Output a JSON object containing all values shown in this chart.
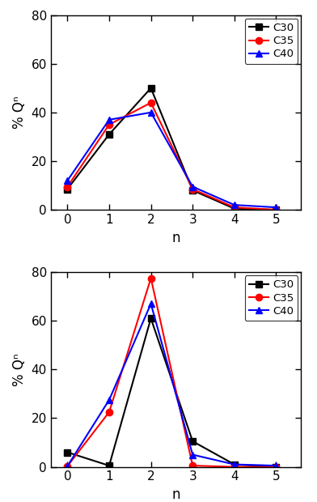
{
  "top_panel": {
    "ylabel": "% Qⁿ",
    "xlabel": "n",
    "series": {
      "C30": {
        "color": "black",
        "marker": "s",
        "x": [
          0,
          1,
          2,
          3,
          4,
          5
        ],
        "y": [
          8.5,
          31,
          50,
          8,
          0.5,
          0
        ]
      },
      "C35": {
        "color": "red",
        "marker": "o",
        "x": [
          0,
          1,
          2,
          3,
          4,
          5
        ],
        "y": [
          9.5,
          35,
          44,
          8.5,
          1.0,
          0
        ]
      },
      "C40": {
        "color": "blue",
        "marker": "^",
        "x": [
          0,
          1,
          2,
          3,
          4,
          5
        ],
        "y": [
          12,
          37,
          40,
          9.5,
          2,
          1
        ]
      }
    },
    "ylim": [
      0,
      80
    ],
    "xlim": [
      -0.4,
      5.6
    ],
    "yticks": [
      0,
      20,
      40,
      60,
      80
    ],
    "xticks": [
      0,
      1,
      2,
      3,
      4,
      5
    ]
  },
  "bottom_panel": {
    "ylabel": "% Qⁿ",
    "xlabel": "n",
    "series": {
      "C30": {
        "color": "black",
        "marker": "s",
        "x": [
          0,
          1,
          2,
          3,
          4,
          5
        ],
        "y": [
          6,
          0.5,
          61,
          10.5,
          1,
          0
        ]
      },
      "C35": {
        "color": "red",
        "marker": "o",
        "x": [
          0,
          1,
          2,
          3,
          4,
          5
        ],
        "y": [
          0.3,
          22.5,
          77.5,
          0.5,
          0,
          0
        ]
      },
      "C40": {
        "color": "blue",
        "marker": "^",
        "x": [
          0,
          1,
          2,
          3,
          4,
          5
        ],
        "y": [
          0.3,
          27.5,
          67,
          5,
          1,
          0.5
        ]
      }
    },
    "ylim": [
      0,
      80
    ],
    "xlim": [
      -0.4,
      5.6
    ],
    "yticks": [
      0,
      20,
      40,
      60,
      80
    ],
    "xticks": [
      0,
      1,
      2,
      3,
      4,
      5
    ]
  },
  "legend_labels": [
    "C30",
    "C35",
    "C40"
  ],
  "line_width": 1.5,
  "marker_size": 6,
  "font_size": 12,
  "tick_label_size": 11
}
